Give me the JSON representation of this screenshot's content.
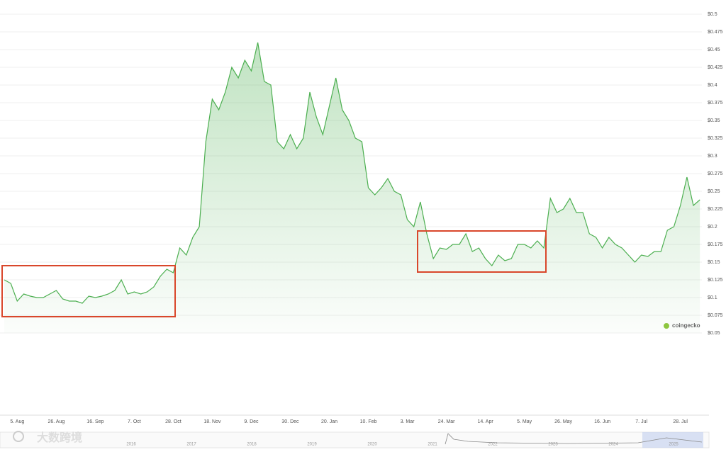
{
  "chart_data": {
    "type": "line",
    "categories": [
      null,
      null,
      "5. Aug",
      null,
      null,
      null,
      null,
      null,
      "26. Aug",
      null,
      null,
      null,
      null,
      null,
      "16. Sep",
      null,
      null,
      null,
      null,
      null,
      "7. Oct",
      null,
      null,
      null,
      null,
      null,
      "28. Oct",
      null,
      null,
      null,
      null,
      null,
      "18. Nov",
      null,
      null,
      null,
      null,
      null,
      "9. Dec",
      null,
      null,
      null,
      null,
      null,
      "30. Dec",
      null,
      null,
      null,
      null,
      null,
      "20. Jan",
      null,
      null,
      null,
      null,
      null,
      "10. Feb",
      null,
      null,
      null,
      null,
      null,
      "3. Mar",
      null,
      null,
      null,
      null,
      null,
      "24. Mar",
      null,
      null,
      null,
      null,
      null,
      "14. Apr",
      null,
      null,
      null,
      null,
      null,
      "5. May",
      null,
      null,
      null,
      null,
      null,
      "26. May",
      null,
      null,
      null,
      null,
      null,
      "16. Jun",
      null,
      null,
      null,
      null,
      null,
      "7. Jul",
      null,
      null,
      null,
      null,
      null,
      "28. Jul",
      null,
      null,
      null
    ],
    "series": [
      {
        "color": "#4caf50",
        "values": [
          0.125,
          0.12,
          0.095,
          0.105,
          0.102,
          0.1,
          0.1,
          0.105,
          0.11,
          0.098,
          0.095,
          0.095,
          0.092,
          0.102,
          0.1,
          0.102,
          0.105,
          0.11,
          0.125,
          0.105,
          0.108,
          0.105,
          0.108,
          0.115,
          0.13,
          0.14,
          0.135,
          0.17,
          0.16,
          0.185,
          0.2,
          0.32,
          0.38,
          0.365,
          0.39,
          0.425,
          0.41,
          0.435,
          0.42,
          0.46,
          0.405,
          0.4,
          0.32,
          0.31,
          0.33,
          0.31,
          0.325,
          0.39,
          0.355,
          0.33,
          0.37,
          0.41,
          0.365,
          0.35,
          0.325,
          0.32,
          0.255,
          0.245,
          0.255,
          0.268,
          0.25,
          0.245,
          0.21,
          0.2,
          0.235,
          0.19,
          0.155,
          0.17,
          0.168,
          0.175,
          0.175,
          0.19,
          0.165,
          0.17,
          0.155,
          0.145,
          0.16,
          0.152,
          0.155,
          0.175,
          0.175,
          0.17,
          0.18,
          0.17,
          0.24,
          0.22,
          0.225,
          0.24,
          0.22,
          0.22,
          0.19,
          0.185,
          0.17,
          0.185,
          0.175,
          0.17,
          0.16,
          0.15,
          0.16,
          0.158,
          0.165,
          0.165,
          0.195,
          0.2,
          0.23,
          0.27,
          0.23,
          0.238
        ]
      }
    ],
    "ylim": [
      0.05,
      0.5
    ],
    "yticks": [
      {
        "value": 0.05,
        "label": "$0.05"
      },
      {
        "value": 0.075,
        "label": "$0.075"
      },
      {
        "value": 0.1,
        "label": "$0.1"
      },
      {
        "value": 0.125,
        "label": "$0.125"
      },
      {
        "value": 0.15,
        "label": "$0.15"
      },
      {
        "value": 0.175,
        "label": "$0.175"
      },
      {
        "value": 0.2,
        "label": "$0.2"
      },
      {
        "value": 0.225,
        "label": "$0.225"
      },
      {
        "value": 0.25,
        "label": "$0.25"
      },
      {
        "value": 0.275,
        "label": "$0.275"
      },
      {
        "value": 0.3,
        "label": "$0.3"
      },
      {
        "value": 0.325,
        "label": "$0.325"
      },
      {
        "value": 0.35,
        "label": "$0.35"
      },
      {
        "value": 0.375,
        "label": "$0.375"
      },
      {
        "value": 0.4,
        "label": "$0.4"
      },
      {
        "value": 0.425,
        "label": "$0.425"
      },
      {
        "value": 0.45,
        "label": "$0.45"
      },
      {
        "value": 0.475,
        "label": "$0.475"
      },
      {
        "value": 0.5,
        "label": "$0.5"
      }
    ],
    "grid": true,
    "navigator_years": [
      "2016",
      "2017",
      "2018",
      "2019",
      "2020",
      "2021",
      "2022",
      "2023",
      "2024",
      "2025"
    ],
    "brand": "coingecko",
    "watermark": "大数跨境"
  }
}
